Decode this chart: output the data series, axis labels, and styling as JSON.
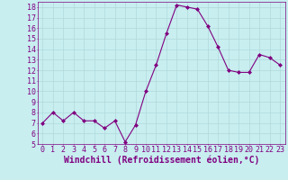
{
  "x": [
    0,
    1,
    2,
    3,
    4,
    5,
    6,
    7,
    8,
    9,
    10,
    11,
    12,
    13,
    14,
    15,
    16,
    17,
    18,
    19,
    20,
    21,
    22,
    23
  ],
  "y": [
    7.0,
    8.0,
    7.2,
    8.0,
    7.2,
    7.2,
    6.5,
    7.2,
    5.2,
    6.8,
    10.0,
    12.5,
    15.5,
    18.2,
    18.0,
    17.8,
    16.2,
    14.2,
    12.0,
    11.8,
    11.8,
    13.5,
    13.2,
    12.5
  ],
  "line_color": "#800080",
  "marker": "D",
  "marker_size": 2,
  "background_color": "#c8eef0",
  "grid_color": "#b0d8da",
  "xlabel": "Windchill (Refroidissement éolien,°C)",
  "xlabel_fontsize": 7,
  "ylim": [
    5,
    18.5
  ],
  "yticks": [
    5,
    6,
    7,
    8,
    9,
    10,
    11,
    12,
    13,
    14,
    15,
    16,
    17,
    18
  ],
  "xticks": [
    0,
    1,
    2,
    3,
    4,
    5,
    6,
    7,
    8,
    9,
    10,
    11,
    12,
    13,
    14,
    15,
    16,
    17,
    18,
    19,
    20,
    21,
    22,
    23
  ],
  "tick_fontsize": 6,
  "spine_color": "#800080",
  "fig_width": 3.2,
  "fig_height": 2.0,
  "dpi": 100
}
